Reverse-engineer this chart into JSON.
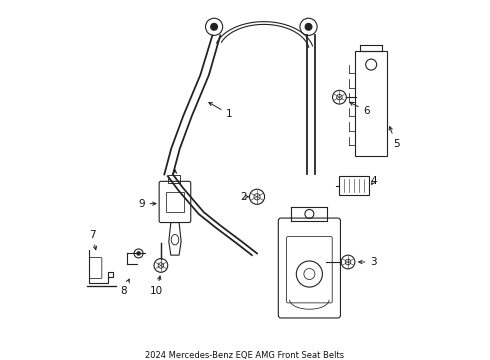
{
  "title": "2024 Mercedes-Benz EQE AMG Front Seat Belts",
  "bg_color": "#ffffff",
  "line_color": "#222222",
  "label_color": "#111111",
  "fig_width": 4.9,
  "fig_height": 3.6,
  "dpi": 100
}
